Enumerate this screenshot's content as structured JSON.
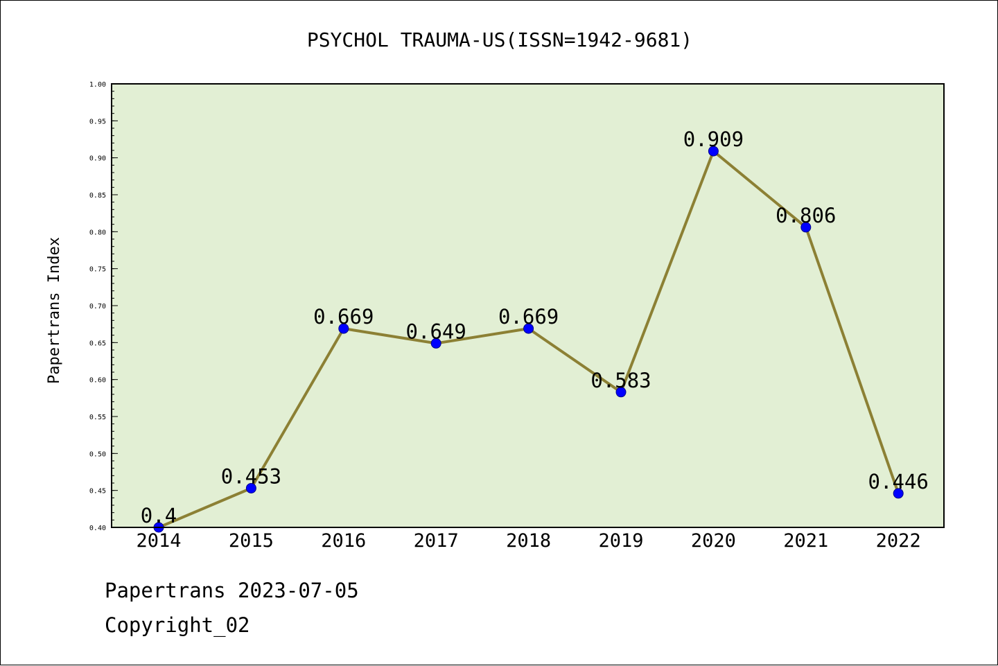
{
  "chart_data": {
    "type": "line",
    "title": "PSYCHOL TRAUMA-US(ISSN=1942-9681)",
    "xlabel": "",
    "ylabel": "Papertrans Index",
    "categories": [
      "2014",
      "2015",
      "2016",
      "2017",
      "2018",
      "2019",
      "2020",
      "2021",
      "2022"
    ],
    "series": [
      {
        "values": [
          0.4,
          0.453,
          0.669,
          0.649,
          0.669,
          0.583,
          0.909,
          0.806,
          0.446
        ],
        "labels": [
          "0.4",
          "0.453",
          "0.669",
          "0.649",
          "0.669",
          "0.583",
          "0.909",
          "0.806",
          "0.446"
        ]
      }
    ],
    "ylim": [
      0.4,
      1.0
    ],
    "y_ticks": [
      "0.40",
      "0.45",
      "0.50",
      "0.55",
      "0.60",
      "0.65",
      "0.70",
      "0.75",
      "0.80",
      "0.85",
      "0.90",
      "0.95",
      "1.00"
    ],
    "grid": false,
    "legend": "none",
    "colors": {
      "plot_background": "#e2efd4",
      "line": "#8c8034",
      "marker": "#0000ff"
    }
  },
  "footer": {
    "date_line": "Papertrans 2023-07-05",
    "copyright": "Copyright_02"
  }
}
